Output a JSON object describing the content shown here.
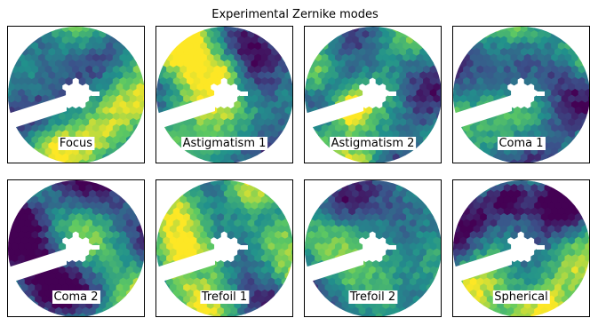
{
  "title": "Experimental Zernike modes",
  "colormap": [
    "#440154",
    "#3b528b",
    "#21918c",
    "#5ec962",
    "#fde725"
  ],
  "panels": [
    {
      "label": "Focus",
      "seed": 11
    },
    {
      "label": "Astigmatism 1",
      "seed": 23
    },
    {
      "label": "Astigmatism 2",
      "seed": 37
    },
    {
      "label": "Coma 1",
      "seed": 41
    },
    {
      "label": "Coma 2",
      "seed": 53
    },
    {
      "label": "Trefoil 1",
      "seed": 67
    },
    {
      "label": "Trefoil 2",
      "seed": 79
    },
    {
      "label": "Spherical",
      "seed": 97
    }
  ]
}
